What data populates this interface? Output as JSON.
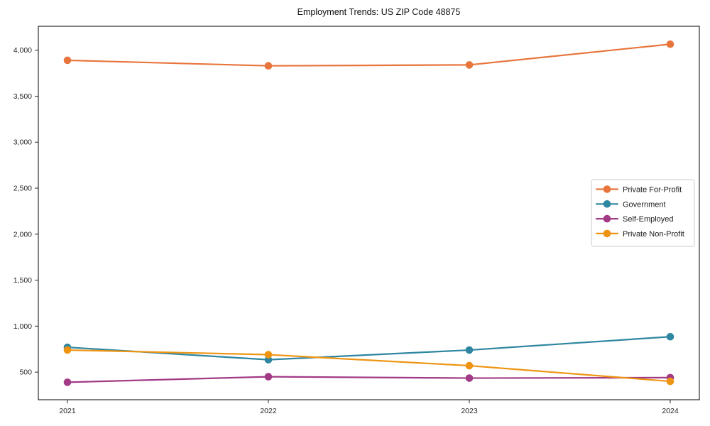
{
  "title": "Employment Trends: US ZIP Code 48875",
  "chart_data": {
    "type": "line",
    "x": [
      "2021",
      "2022",
      "2023",
      "2024"
    ],
    "series": [
      {
        "name": "Private For-Profit",
        "color": "#e8753c",
        "values": [
          3890,
          3830,
          3840,
          4065
        ]
      },
      {
        "name": "Government",
        "color": "#2e86a0",
        "values": [
          770,
          635,
          740,
          885
        ]
      },
      {
        "name": "Self-Employed",
        "color": "#a23a85",
        "values": [
          390,
          450,
          435,
          440
        ]
      },
      {
        "name": "Private Non-Profit",
        "color": "#ee9412",
        "values": [
          740,
          690,
          570,
          400
        ]
      }
    ],
    "xlabel": "",
    "ylabel": "",
    "ylim": [
      200,
      4260
    ],
    "yticks": [
      500,
      1000,
      1500,
      2000,
      2500,
      3000,
      3500,
      4000
    ],
    "grid": false,
    "legend_position": "center right",
    "marker": "circle"
  }
}
